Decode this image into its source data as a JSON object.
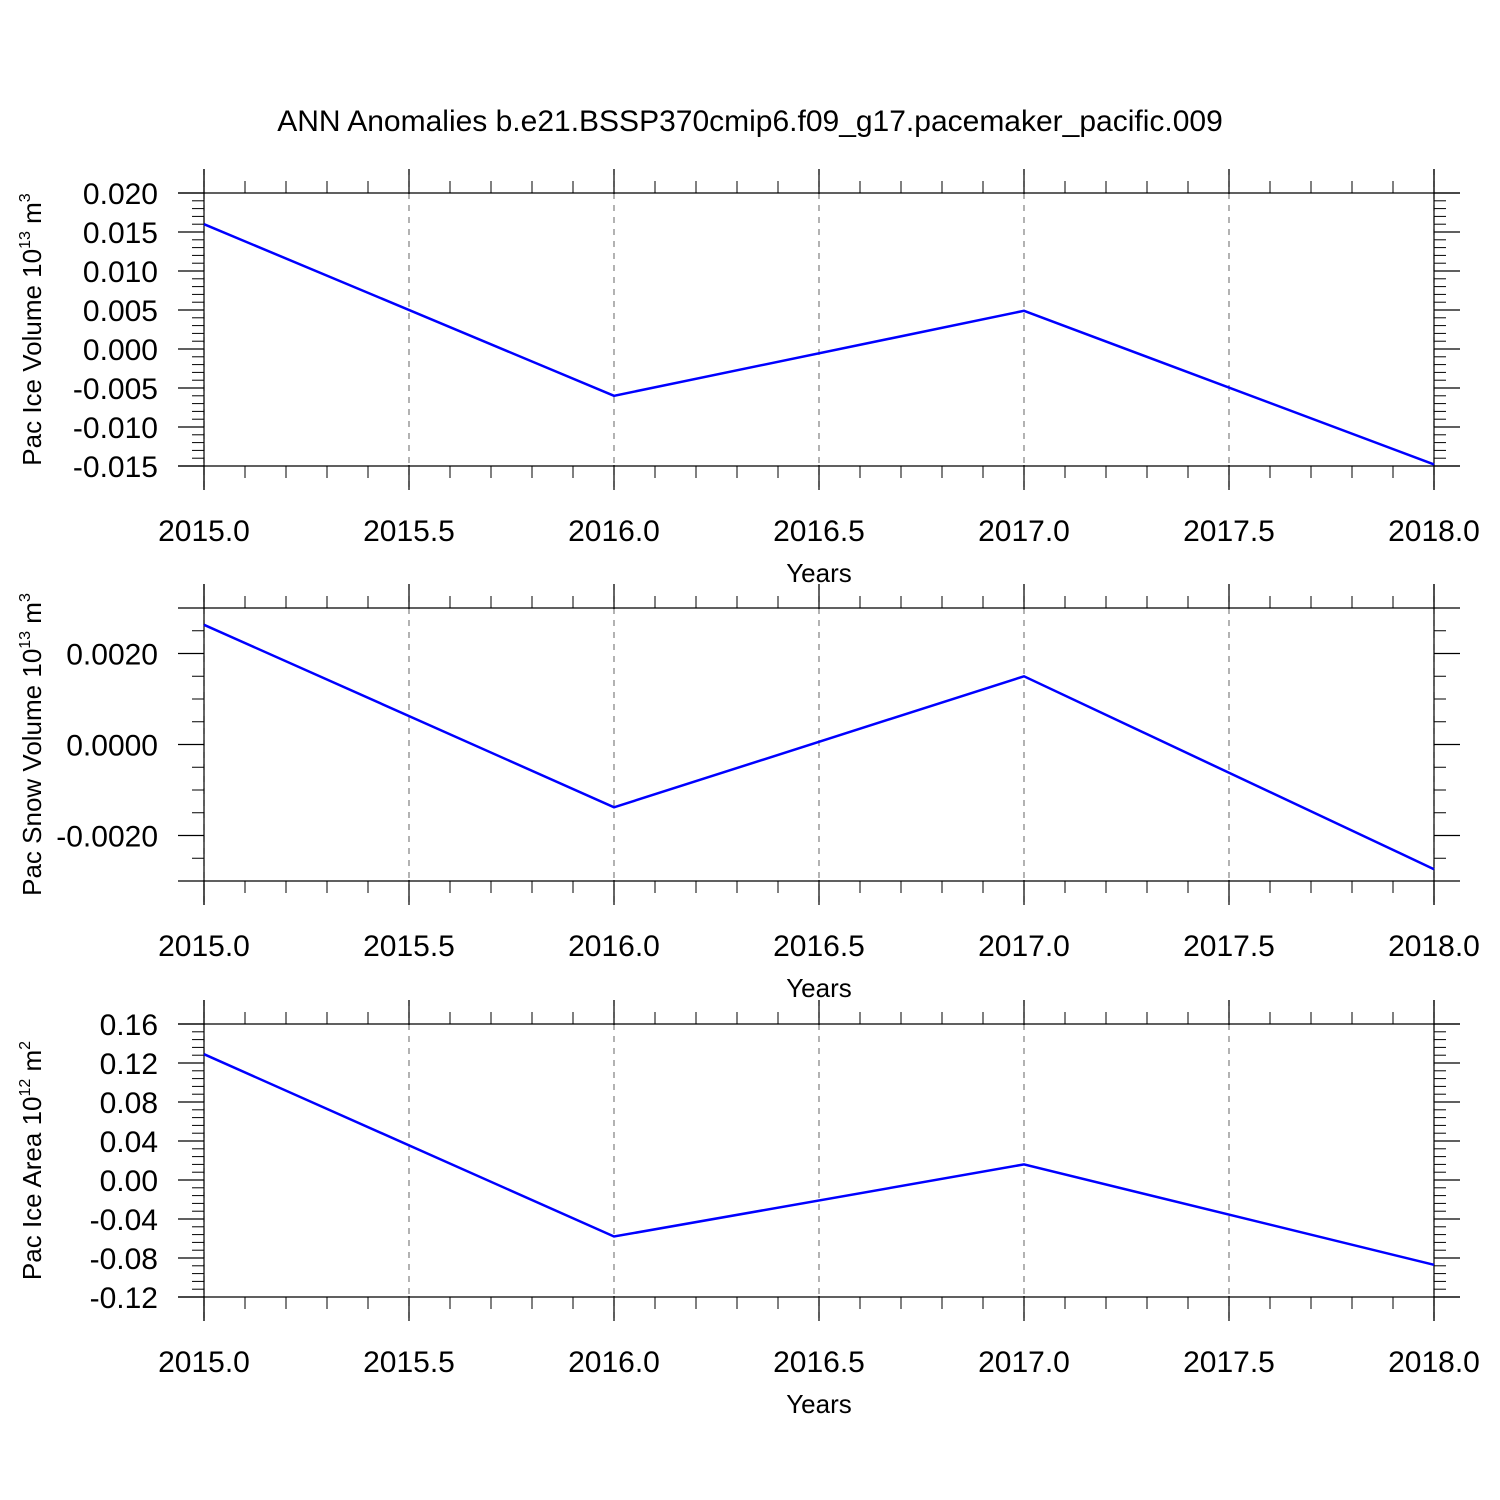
{
  "title": "ANN Anomalies b.e21.BSSP370cmip6.f09_g17.pacemaker_pacific.009",
  "chart_data": [
    {
      "type": "line",
      "xlabel": "Years",
      "ylabel": {
        "pre": "Pac Ice Volume 10",
        "sup1": "13",
        "mid": " m",
        "sup2": "3"
      },
      "xlim": [
        2015.0,
        2018.0
      ],
      "ylim": [
        -0.015,
        0.02
      ],
      "xticks": [
        2015.0,
        2015.5,
        2016.0,
        2016.5,
        2017.0,
        2017.5,
        2018.0
      ],
      "xtick_labels": [
        "2015.0",
        "2015.5",
        "2016.0",
        "2016.5",
        "2017.0",
        "2017.5",
        "2018.0"
      ],
      "yticks": [
        -0.015,
        -0.01,
        -0.005,
        0.0,
        0.005,
        0.01,
        0.015,
        0.02
      ],
      "ytick_labels": [
        "-0.015",
        "-0.010",
        "-0.005",
        "0.000",
        "0.005",
        "0.010",
        "0.015",
        "0.020"
      ],
      "yminor_step": 0.001,
      "grid": "vertical dashed",
      "series": [
        {
          "x": [
            2015,
            2016,
            2017,
            2018
          ],
          "y": [
            0.016,
            -0.006,
            0.0049,
            -0.0148
          ]
        }
      ]
    },
    {
      "type": "line",
      "xlabel": "Years",
      "ylabel": {
        "pre": "Pac Snow Volume 10",
        "sup1": "13",
        "mid": " m",
        "sup2": "3"
      },
      "xlim": [
        2015.0,
        2018.0
      ],
      "ylim": [
        -0.003,
        0.003
      ],
      "xticks": [
        2015.0,
        2015.5,
        2016.0,
        2016.5,
        2017.0,
        2017.5,
        2018.0
      ],
      "xtick_labels": [
        "2015.0",
        "2015.5",
        "2016.0",
        "2016.5",
        "2017.0",
        "2017.5",
        "2018.0"
      ],
      "yticks": [
        -0.002,
        0.0,
        0.002
      ],
      "ytick_labels": [
        "-0.0020",
        "0.0000",
        "0.0020"
      ],
      "yminor_step": 0.0005,
      "grid": "vertical dashed",
      "series": [
        {
          "x": [
            2015,
            2016,
            2017,
            2018
          ],
          "y": [
            0.00263,
            -0.00138,
            0.0015,
            -0.00274
          ]
        }
      ]
    },
    {
      "type": "line",
      "xlabel": "Years",
      "ylabel": {
        "pre": "Pac Ice Area 10",
        "sup1": "12",
        "mid": " m",
        "sup2": "2"
      },
      "xlim": [
        2015.0,
        2018.0
      ],
      "ylim": [
        -0.12,
        0.16
      ],
      "xticks": [
        2015.0,
        2015.5,
        2016.0,
        2016.5,
        2017.0,
        2017.5,
        2018.0
      ],
      "xtick_labels": [
        "2015.0",
        "2015.5",
        "2016.0",
        "2016.5",
        "2017.0",
        "2017.5",
        "2018.0"
      ],
      "yticks": [
        -0.12,
        -0.08,
        -0.04,
        0.0,
        0.04,
        0.08,
        0.12,
        0.16
      ],
      "ytick_labels": [
        "-0.12",
        "-0.08",
        "-0.04",
        "0.00",
        "0.04",
        "0.08",
        "0.12",
        "0.16"
      ],
      "yminor_step": 0.008,
      "grid": "vertical dashed",
      "series": [
        {
          "x": [
            2015,
            2016,
            2017,
            2018
          ],
          "y": [
            0.129,
            -0.058,
            0.016,
            -0.087
          ]
        }
      ]
    }
  ],
  "colors": {
    "line": "#0000ff",
    "axes": "#000000",
    "grid": "#808080"
  }
}
